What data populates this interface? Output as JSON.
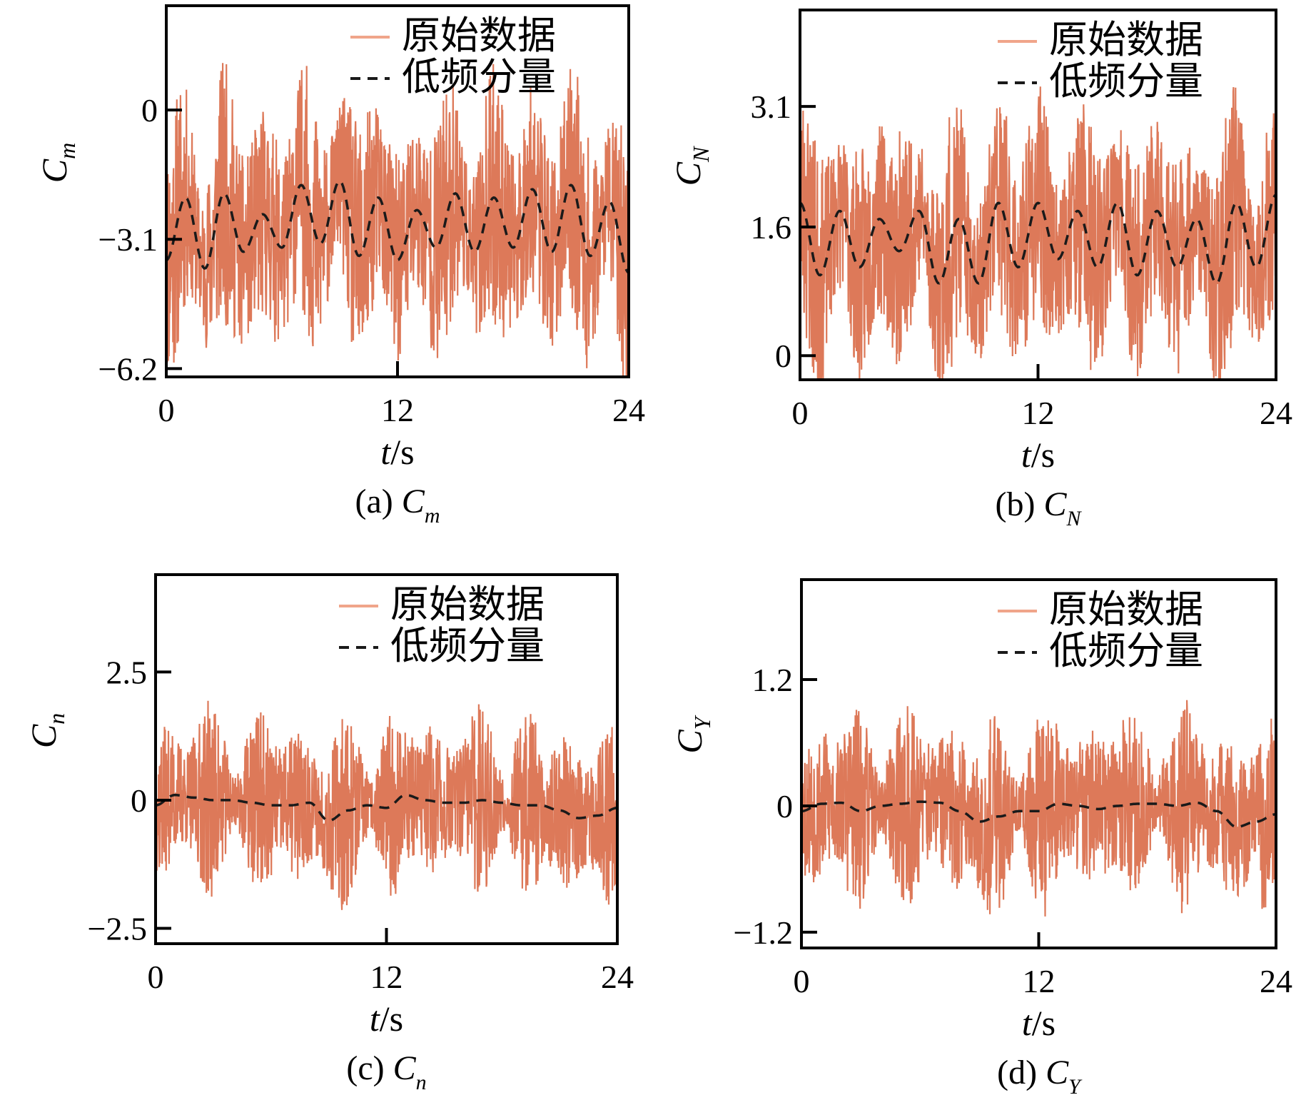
{
  "colors": {
    "raw": "#d4572f",
    "raw_legend": "#f0a58a",
    "lowfreq": "#1a1a1a",
    "axes": "#000000"
  },
  "chart_data": [
    {
      "type": "line",
      "panel": "a",
      "caption_prefix": "(a) ",
      "caption_symbol": "C",
      "caption_sub": "m",
      "ylabel_symbol": "C",
      "ylabel_sub": "m",
      "xlabel_var": "t",
      "xlabel_unit": "/s",
      "xlim": [
        0,
        24
      ],
      "ylim": [
        -6.4,
        2.5
      ],
      "xticks": [
        0,
        12,
        24
      ],
      "xtick_labels": [
        "0",
        "12",
        "24"
      ],
      "yticks": [
        0,
        -3.1,
        -6.2
      ],
      "ytick_labels": [
        "0",
        "−3.1",
        "−6.2"
      ],
      "legend": [
        "原始数据",
        "低频分量"
      ],
      "legend_position": "top-right",
      "series": [
        {
          "name": "原始数据",
          "style": "band",
          "mean_amp": 1.55,
          "noise_amp": 1.9,
          "seed": 11,
          "x": [
            0,
            1,
            2,
            3,
            4,
            5,
            6,
            7,
            8,
            9,
            10,
            11,
            12,
            13,
            14,
            15,
            16,
            17,
            18,
            19,
            20,
            21,
            22,
            23,
            24
          ]
        },
        {
          "name": "低频分量",
          "style": "dashed",
          "period": 2.6,
          "offset": -2.75,
          "amp": 0.9,
          "x": [
            0,
            1,
            2,
            3,
            4,
            5,
            6,
            7,
            8,
            9,
            10,
            11,
            12,
            13,
            14,
            15,
            16,
            17,
            18,
            19,
            20,
            21,
            22,
            23,
            24
          ],
          "y": [
            -3.6,
            -2.1,
            -3.8,
            -2.0,
            -3.4,
            -2.5,
            -3.3,
            -1.8,
            -3.2,
            -1.7,
            -3.5,
            -2.1,
            -3.6,
            -2.4,
            -3.3,
            -2.0,
            -3.4,
            -2.1,
            -3.3,
            -1.9,
            -3.4,
            -1.8,
            -3.5,
            -2.2,
            -3.9
          ]
        }
      ]
    },
    {
      "type": "line",
      "panel": "b",
      "caption_prefix": "(b) ",
      "caption_symbol": "C",
      "caption_sub": "N",
      "ylabel_symbol": "C",
      "ylabel_sub": "N",
      "xlabel_var": "t",
      "xlabel_unit": "/s",
      "xlim": [
        0,
        24
      ],
      "ylim": [
        -0.3,
        4.3
      ],
      "xticks": [
        0,
        12,
        24
      ],
      "xtick_labels": [
        "0",
        "12",
        "24"
      ],
      "yticks": [
        3.1,
        1.6,
        0
      ],
      "ytick_labels": [
        "3.1",
        "1.6",
        "0"
      ],
      "legend": [
        "原始数据",
        "低频分量"
      ],
      "legend_position": "top-right",
      "series": [
        {
          "name": "原始数据",
          "style": "band",
          "mean_amp": 0.8,
          "noise_amp": 0.95,
          "seed": 23,
          "x": [
            0,
            1,
            2,
            3,
            4,
            5,
            6,
            7,
            8,
            9,
            10,
            11,
            12,
            13,
            14,
            15,
            16,
            17,
            18,
            19,
            20,
            21,
            22,
            23,
            24
          ]
        },
        {
          "name": "低频分量",
          "style": "dashed",
          "x": [
            0,
            1,
            2,
            3,
            4,
            5,
            6,
            7,
            8,
            9,
            10,
            11,
            12,
            13,
            14,
            15,
            16,
            17,
            18,
            19,
            20,
            21,
            22,
            23,
            24
          ],
          "y": [
            1.9,
            1.0,
            1.8,
            1.1,
            1.7,
            1.3,
            1.8,
            0.9,
            1.7,
            0.9,
            1.9,
            1.1,
            1.9,
            1.2,
            1.8,
            1.1,
            1.9,
            1.0,
            1.8,
            1.1,
            1.7,
            0.9,
            1.9,
            1.1,
            2.0
          ]
        }
      ]
    },
    {
      "type": "line",
      "panel": "c",
      "caption_prefix": "(c) ",
      "caption_symbol": "C",
      "caption_sub": "n",
      "ylabel_symbol": "C",
      "ylabel_sub": "n",
      "xlabel_var": "t",
      "xlabel_unit": "/s",
      "xlim": [
        0,
        24
      ],
      "ylim": [
        -2.8,
        4.4
      ],
      "xticks": [
        0,
        12,
        24
      ],
      "xtick_labels": [
        "0",
        "12",
        "24"
      ],
      "yticks": [
        2.5,
        0,
        -2.5
      ],
      "ytick_labels": [
        "2.5",
        "0",
        "−2.5"
      ],
      "legend": [
        "原始数据",
        "低频分量"
      ],
      "legend_position": "top-right",
      "series": [
        {
          "name": "原始数据",
          "style": "band",
          "mean_amp": 0.0,
          "noise_amp": 1.6,
          "seed": 37,
          "x": [
            0,
            1,
            2,
            3,
            4,
            5,
            6,
            7,
            8,
            9,
            10,
            11,
            12,
            13,
            14,
            15,
            16,
            17,
            18,
            19,
            20,
            21,
            22,
            23,
            24
          ]
        },
        {
          "name": "低频分量",
          "style": "dashed",
          "x": [
            0,
            1,
            2,
            3,
            4,
            5,
            6,
            7,
            8,
            9,
            10,
            11,
            12,
            13,
            14,
            15,
            16,
            17,
            18,
            19,
            20,
            21,
            22,
            23,
            24
          ],
          "y": [
            -0.1,
            0.1,
            0.05,
            0.0,
            0.0,
            -0.05,
            -0.1,
            -0.1,
            -0.05,
            -0.4,
            -0.2,
            -0.1,
            -0.15,
            0.1,
            0.0,
            -0.05,
            -0.05,
            0.0,
            -0.05,
            -0.1,
            -0.1,
            -0.2,
            -0.35,
            -0.3,
            -0.15
          ]
        }
      ]
    },
    {
      "type": "line",
      "panel": "d",
      "caption_prefix": "(d) ",
      "caption_symbol": "C",
      "caption_sub": "Y",
      "ylabel_symbol": "C",
      "ylabel_sub": "Y",
      "xlabel_var": "t",
      "xlabel_unit": "/s",
      "xlim": [
        0,
        24
      ],
      "ylim": [
        -1.35,
        2.15
      ],
      "xticks": [
        0,
        12,
        24
      ],
      "xtick_labels": [
        "0",
        "12",
        "24"
      ],
      "yticks": [
        1.2,
        0,
        -1.2
      ],
      "ytick_labels": [
        "1.2",
        "0",
        "−1.2"
      ],
      "legend": [
        "原始数据",
        "低频分量"
      ],
      "legend_position": "top-right",
      "series": [
        {
          "name": "原始数据",
          "style": "band",
          "mean_amp": 0.0,
          "noise_amp": 0.85,
          "seed": 53,
          "x": [
            0,
            1,
            2,
            3,
            4,
            5,
            6,
            7,
            8,
            9,
            10,
            11,
            12,
            13,
            14,
            15,
            16,
            17,
            18,
            19,
            20,
            21,
            22,
            23,
            24
          ]
        },
        {
          "name": "低频分量",
          "style": "dashed",
          "x": [
            0,
            1,
            2,
            3,
            4,
            5,
            6,
            7,
            8,
            9,
            10,
            11,
            12,
            13,
            14,
            15,
            16,
            17,
            18,
            19,
            20,
            21,
            22,
            23,
            24
          ],
          "y": [
            -0.05,
            0.02,
            0.03,
            -0.05,
            0.0,
            0.02,
            0.04,
            0.03,
            -0.05,
            -0.15,
            -0.1,
            -0.05,
            -0.05,
            0.02,
            0.0,
            -0.03,
            0.0,
            0.02,
            0.02,
            0.0,
            0.03,
            -0.05,
            -0.2,
            -0.15,
            -0.08
          ]
        }
      ]
    }
  ]
}
